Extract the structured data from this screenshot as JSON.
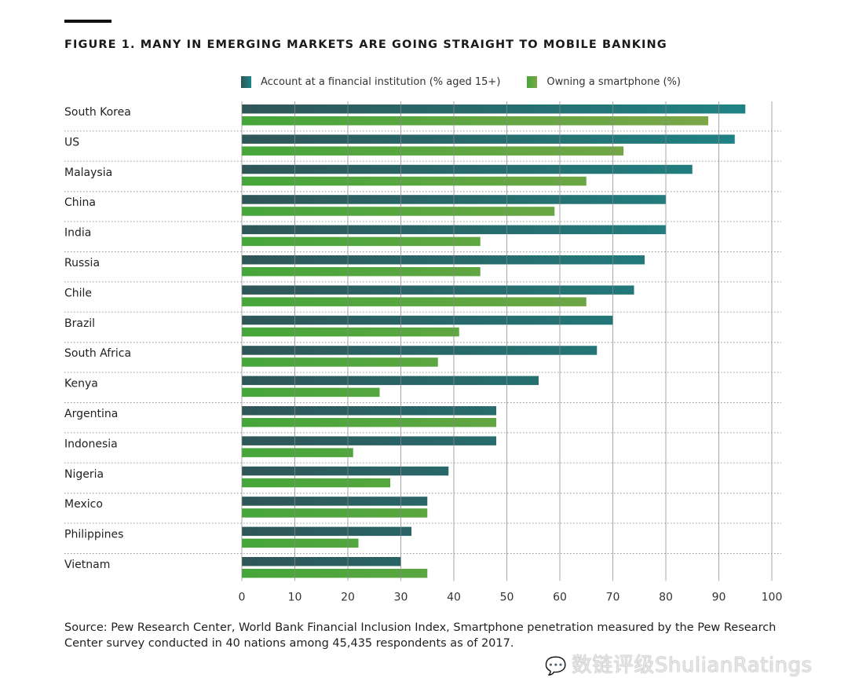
{
  "title": "FIGURE 1. MANY IN EMERGING MARKETS ARE GOING STRAIGHT TO MOBILE BANKING",
  "legend": [
    {
      "label": "Account at a financial institution (% aged 15+)",
      "icon": "teal-gradient-swatch"
    },
    {
      "label": "Owning a smartphone (%)",
      "icon": "green-gradient-swatch"
    }
  ],
  "source": "Source: Pew Research Center, World Bank Financial Inclusion Index, Smartphone penetration measured by the Pew Research Center survey conducted in 40 nations among 45,435 respondents as of 2017.",
  "watermark": {
    "icon": "wechat-icon",
    "text": "数链评级ShulianRatings"
  },
  "colors": {
    "account_start": "#2f5557",
    "account_end": "#1e8587",
    "smartphone_start": "#45a63a",
    "smartphone_end": "#82a64a",
    "gridline": "#8a8a8a",
    "row_separator": "#9a9a9a"
  },
  "chart_data": {
    "type": "bar",
    "orientation": "horizontal",
    "title": "FIGURE 1. MANY IN EMERGING MARKETS ARE GOING STRAIGHT TO MOBILE BANKING",
    "xlabel": "",
    "ylabel": "",
    "xlim": [
      0,
      100
    ],
    "xticks": [
      "0",
      "10",
      "20",
      "30",
      "40",
      "50",
      "60",
      "70",
      "80",
      "90",
      "100"
    ],
    "grid": "vertical",
    "legend_position": "top",
    "categories": [
      "South Korea",
      "US",
      "Malaysia",
      "China",
      "India",
      "Russia",
      "Chile",
      "Brazil",
      "South Africa",
      "Kenya",
      "Argentina",
      "Indonesia",
      "Nigeria",
      "Mexico",
      "Philippines",
      "Vietnam"
    ],
    "series": [
      {
        "name": "Account at a financial institution (% aged 15+)",
        "values": [
          95,
          93,
          85,
          80,
          80,
          76,
          74,
          70,
          67,
          56,
          48,
          48,
          39,
          35,
          32,
          30
        ]
      },
      {
        "name": "Owning a smartphone (%)",
        "values": [
          88,
          72,
          65,
          59,
          45,
          45,
          65,
          41,
          37,
          26,
          48,
          21,
          28,
          35,
          22,
          35
        ]
      }
    ]
  }
}
